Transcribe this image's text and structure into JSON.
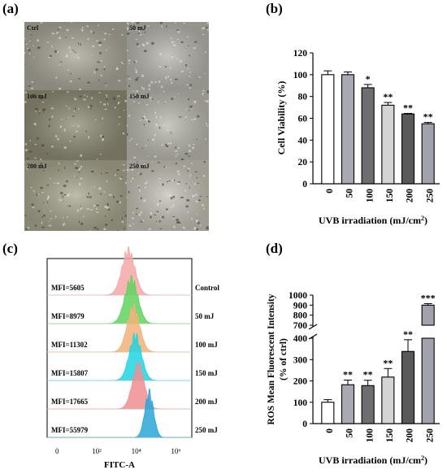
{
  "panels": {
    "a_label": "(a)",
    "b_label": "(b)",
    "c_label": "(c)",
    "d_label": "(d)"
  },
  "micrographs": [
    {
      "label": "Ctrl",
      "tone": "#a8a598"
    },
    {
      "label": "50 mJ",
      "tone": "#b4b3ab"
    },
    {
      "label": "100 mJ",
      "tone": "#8d8a74"
    },
    {
      "label": "150 mJ",
      "tone": "#b9b7ad"
    },
    {
      "label": "200 mJ",
      "tone": "#a7a58e"
    },
    {
      "label": "250 mJ",
      "tone": "#c3c0b4"
    }
  ],
  "chart_data": [
    {
      "id": "b",
      "type": "bar",
      "categories": [
        "0",
        "50",
        "100",
        "150",
        "200",
        "250"
      ],
      "values": [
        100,
        100,
        88,
        72,
        64,
        55
      ],
      "errors": [
        3.5,
        2.5,
        3,
        2.5,
        0.5,
        1.2
      ],
      "significance": [
        "",
        "",
        "*",
        "**",
        "**",
        "**"
      ],
      "bar_colors": [
        "#ffffff",
        "#a9a9b1",
        "#6e6e72",
        "#d4d4d4",
        "#595959",
        "#a2a2ad"
      ],
      "xlabel": "UVB irradiation (mJ/cm",
      "xlabel_sup": "2",
      "xlabel_end": ")",
      "ylabel": "Cell Viability (%)",
      "ylim": [
        0,
        120
      ],
      "yticks": [
        "0",
        "20",
        "40",
        "60",
        "80",
        "100",
        "120"
      ]
    },
    {
      "id": "c",
      "type": "histogram",
      "xlabel": "FITC-A",
      "xticks": [
        "0",
        "10²",
        "10⁴",
        "10⁶"
      ],
      "series": [
        {
          "name": "Control",
          "mfi": "MFI=5605",
          "peak_log": 3.6,
          "width": 0.33,
          "color": "#f4a8a8"
        },
        {
          "name": "50 mJ",
          "mfi": "MFI=8979",
          "peak_log": 3.75,
          "width": 0.33,
          "color": "#5fd35f"
        },
        {
          "name": "100 mJ",
          "mfi": "MFI=11302",
          "peak_log": 3.85,
          "width": 0.32,
          "color": "#f2b27a"
        },
        {
          "name": "150 mJ",
          "mfi": "MFI=15807",
          "peak_log": 3.95,
          "width": 0.31,
          "color": "#22d3e3"
        },
        {
          "name": "200 mJ",
          "mfi": "MFI=17665",
          "peak_log": 4.1,
          "width": 0.3,
          "color": "#ef8f92"
        },
        {
          "name": "250 mJ",
          "mfi": "MFI=55979",
          "peak_log": 4.65,
          "width": 0.22,
          "color": "#2aa6d8"
        }
      ]
    },
    {
      "id": "d",
      "type": "bar",
      "categories": [
        "0",
        "50",
        "100",
        "150",
        "200",
        "250"
      ],
      "values": [
        100,
        182,
        178,
        218,
        338,
        900
      ],
      "errors": [
        12,
        22,
        25,
        40,
        55,
        15
      ],
      "significance": [
        "",
        "**",
        "**",
        "**",
        "**",
        "***"
      ],
      "bar_colors": [
        "#ffffff",
        "#a9a9b1",
        "#6e6e72",
        "#d4d4d4",
        "#595959",
        "#a2a2ad"
      ],
      "xlabel": "UVB irradiation (mJ/cm",
      "xlabel_sup": "2",
      "xlabel_end": ")",
      "ylabel_line1": "ROS Mean Fluorescent Intensity",
      "ylabel_line2": "(% of ctrl)",
      "axis_break": [
        400,
        700
      ],
      "yticks_lower": [
        "0",
        "100",
        "200",
        "300",
        "400"
      ],
      "yticks_upper": [
        "700",
        "800",
        "900",
        "1000"
      ],
      "ylim": [
        0,
        1000
      ]
    }
  ]
}
